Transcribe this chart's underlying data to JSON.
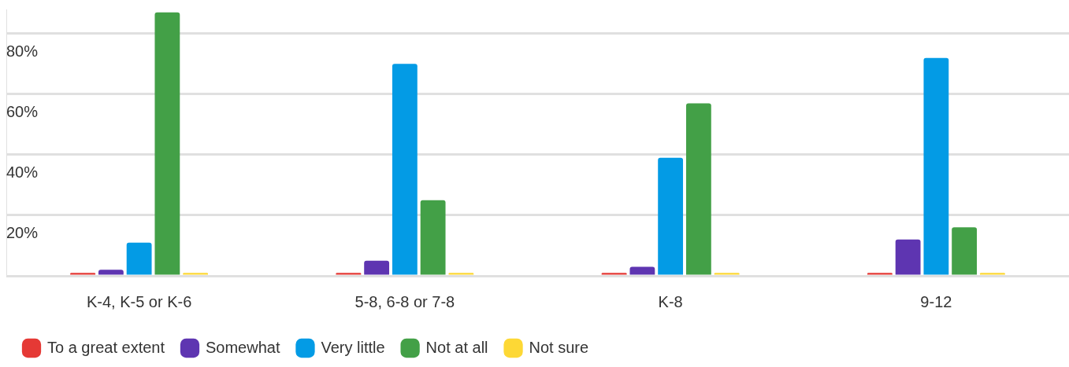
{
  "chart_data": {
    "type": "bar",
    "categories": [
      "K-4, K-5 or K-6",
      "5-8, 6-8 or 7-8",
      "K-8",
      "9-12"
    ],
    "series": [
      {
        "name": "To a great extent",
        "color": "#e53935",
        "values": [
          1,
          1,
          1,
          1
        ]
      },
      {
        "name": "Somewhat",
        "color": "#5e35b1",
        "values": [
          2,
          5,
          3,
          12
        ]
      },
      {
        "name": "Very little",
        "color": "#039be5",
        "values": [
          11,
          70,
          39,
          72
        ]
      },
      {
        "name": "Not at all",
        "color": "#43a047",
        "values": [
          87,
          25,
          57,
          16
        ]
      },
      {
        "name": "Not sure",
        "color": "#fdd835",
        "values": [
          1,
          1,
          1,
          1
        ]
      }
    ],
    "ylim": [
      0,
      88
    ],
    "yticks": [
      {
        "value": 0,
        "label": null
      },
      {
        "value": 20,
        "label": "20%"
      },
      {
        "value": 40,
        "label": "40%"
      },
      {
        "value": 60,
        "label": "60%"
      },
      {
        "value": 80,
        "label": "80%"
      }
    ],
    "grid": "y",
    "legend": "bottom left"
  }
}
